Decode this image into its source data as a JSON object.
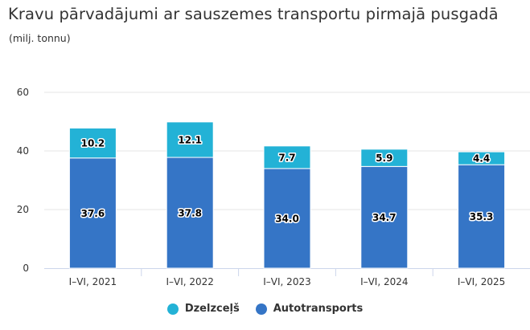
{
  "title": "Kravu pārvadājumi ar sauszemes transportu pirmajā pusgadā",
  "subtitle": "(milj. tonnu)",
  "chart_data": {
    "type": "bar",
    "stacked": true,
    "categories": [
      "I–VI, 2021",
      "I–VI, 2022",
      "I–VI, 2023",
      "I–VI, 2024",
      "I–VI, 2025"
    ],
    "series": [
      {
        "name": "Dzelzceļš",
        "values": [
          10.2,
          12.1,
          7.7,
          5.9,
          4.4
        ],
        "color": "#23b2d6"
      },
      {
        "name": "Autotransports",
        "values": [
          37.6,
          37.8,
          34.0,
          34.7,
          35.3
        ],
        "color": "#3575c6"
      }
    ],
    "stack_order": [
      "Autotransports",
      "Dzelzceļš"
    ],
    "ylim": [
      0,
      60
    ],
    "yticks": [
      0,
      20,
      40,
      60
    ],
    "grid": true,
    "legend_position": "bottom"
  }
}
